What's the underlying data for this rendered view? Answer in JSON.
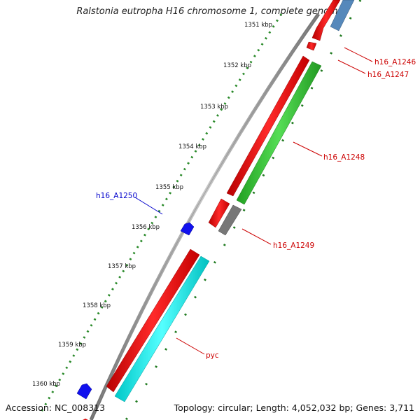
{
  "title": "Ralstonia eutropha H16 chromosome 1, complete genome",
  "footer": {
    "accession": "Accession: NC_008313",
    "summary": "Topology: circular; Length: 4,052,032 bp; Genes: 3,711"
  },
  "ticks": [
    {
      "label": "1351 kbp"
    },
    {
      "label": "1352 kbp"
    },
    {
      "label": "1353 kbp"
    },
    {
      "label": "1354 kbp"
    },
    {
      "label": "1355 kbp"
    },
    {
      "label": "1356 kbp"
    },
    {
      "label": "1357 kbp"
    },
    {
      "label": "1358 kbp"
    },
    {
      "label": "1359 kbp"
    },
    {
      "label": "1360 kbp"
    }
  ],
  "genes": [
    {
      "label": "h16_A1246",
      "color": "#cc0000"
    },
    {
      "label": "h16_A1247",
      "color": "#cc0000"
    },
    {
      "label": "h16_A1248",
      "color": "#cc0000"
    },
    {
      "label": "h16_A1249",
      "color": "#cc0000"
    },
    {
      "label": "h16_A1250",
      "color": "#0000cc"
    },
    {
      "label": "pyc",
      "color": "#cc0000"
    }
  ],
  "colors": {
    "backbone": "#8c8c8c",
    "cds_red": "#ee1111",
    "gene_green": "#33bb33",
    "gene_cyan": "#11dddd",
    "gene_blue": "#1111ee",
    "gene_steelblue": "#5588bb",
    "gene_gray": "#777777",
    "tick_dots": "#2a8a2a"
  }
}
